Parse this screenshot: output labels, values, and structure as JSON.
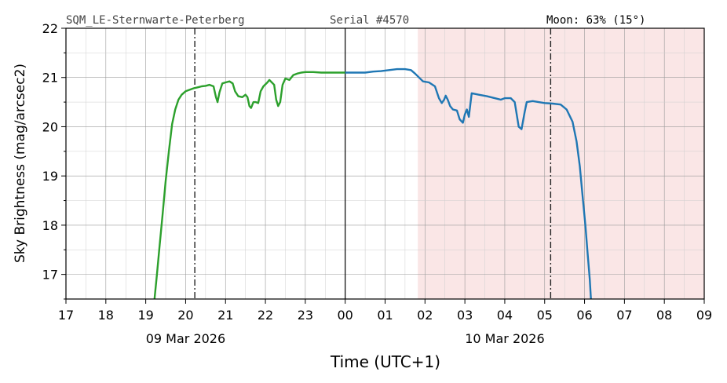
{
  "chart_data": {
    "type": "line",
    "title_left": "SQM_LE-Sternwarte-Peterberg",
    "title_center": "Serial #4570",
    "title_right": "Moon: 63% (15°)",
    "xlabel": "Time (UTC+1)",
    "ylabel": "Sky Brightness (mag/arcsec2)",
    "xlim": [
      17,
      33
    ],
    "ylim": [
      16.5,
      22
    ],
    "grid": true,
    "x_ticks": [
      {
        "x": 17,
        "label": "17"
      },
      {
        "x": 18,
        "label": "18"
      },
      {
        "x": 19,
        "label": "19"
      },
      {
        "x": 20,
        "label": "20"
      },
      {
        "x": 21,
        "label": "21"
      },
      {
        "x": 22,
        "label": "22"
      },
      {
        "x": 23,
        "label": "23"
      },
      {
        "x": 24,
        "label": "00"
      },
      {
        "x": 25,
        "label": "01"
      },
      {
        "x": 26,
        "label": "02"
      },
      {
        "x": 27,
        "label": "03"
      },
      {
        "x": 28,
        "label": "04"
      },
      {
        "x": 29,
        "label": "05"
      },
      {
        "x": 30,
        "label": "06"
      },
      {
        "x": 31,
        "label": "07"
      },
      {
        "x": 32,
        "label": "08"
      },
      {
        "x": 33,
        "label": "09"
      }
    ],
    "y_ticks": [
      {
        "y": 17,
        "label": "17"
      },
      {
        "y": 18,
        "label": "18"
      },
      {
        "y": 19,
        "label": "19"
      },
      {
        "y": 20,
        "label": "20"
      },
      {
        "y": 21,
        "label": "21"
      },
      {
        "y": 22,
        "label": "22"
      }
    ],
    "date_labels": [
      {
        "x": 20,
        "label": "09 Mar 2026"
      },
      {
        "x": 28,
        "label": "10 Mar 2026"
      }
    ],
    "midnight_line_x": 24,
    "dashdot_lines_x": [
      20.23,
      29.15
    ],
    "moon_region": {
      "x_start": 25.82,
      "x_end": 33,
      "color": "#fae6e6"
    },
    "series": [
      {
        "color": "#2ca02c",
        "points": [
          [
            19.22,
            16.5
          ],
          [
            19.28,
            17.0
          ],
          [
            19.35,
            17.6
          ],
          [
            19.42,
            18.2
          ],
          [
            19.5,
            18.9
          ],
          [
            19.58,
            19.5
          ],
          [
            19.66,
            20.05
          ],
          [
            19.74,
            20.35
          ],
          [
            19.82,
            20.55
          ],
          [
            19.9,
            20.65
          ],
          [
            20.0,
            20.72
          ],
          [
            20.1,
            20.75
          ],
          [
            20.2,
            20.78
          ],
          [
            20.3,
            20.8
          ],
          [
            20.4,
            20.82
          ],
          [
            20.5,
            20.83
          ],
          [
            20.6,
            20.85
          ],
          [
            20.7,
            20.82
          ],
          [
            20.76,
            20.6
          ],
          [
            20.8,
            20.5
          ],
          [
            20.85,
            20.7
          ],
          [
            20.92,
            20.88
          ],
          [
            21.0,
            20.9
          ],
          [
            21.1,
            20.92
          ],
          [
            21.18,
            20.88
          ],
          [
            21.24,
            20.72
          ],
          [
            21.32,
            20.62
          ],
          [
            21.42,
            20.6
          ],
          [
            21.5,
            20.65
          ],
          [
            21.55,
            20.6
          ],
          [
            21.6,
            20.42
          ],
          [
            21.64,
            20.38
          ],
          [
            21.7,
            20.5
          ],
          [
            21.76,
            20.5
          ],
          [
            21.82,
            20.48
          ],
          [
            21.88,
            20.72
          ],
          [
            21.95,
            20.82
          ],
          [
            22.05,
            20.9
          ],
          [
            22.1,
            20.95
          ],
          [
            22.16,
            20.9
          ],
          [
            22.22,
            20.85
          ],
          [
            22.27,
            20.55
          ],
          [
            22.32,
            20.42
          ],
          [
            22.37,
            20.5
          ],
          [
            22.43,
            20.85
          ],
          [
            22.5,
            20.98
          ],
          [
            22.6,
            20.95
          ],
          [
            22.7,
            21.05
          ],
          [
            22.8,
            21.08
          ],
          [
            22.9,
            21.1
          ],
          [
            23.0,
            21.11
          ],
          [
            23.2,
            21.11
          ],
          [
            23.4,
            21.1
          ],
          [
            23.6,
            21.1
          ],
          [
            23.8,
            21.1
          ],
          [
            24.0,
            21.1
          ]
        ]
      },
      {
        "color": "#1f77b4",
        "points": [
          [
            24.0,
            21.1
          ],
          [
            24.3,
            21.1
          ],
          [
            24.5,
            21.1
          ],
          [
            24.7,
            21.12
          ],
          [
            24.9,
            21.13
          ],
          [
            25.1,
            21.15
          ],
          [
            25.3,
            21.17
          ],
          [
            25.5,
            21.17
          ],
          [
            25.65,
            21.15
          ],
          [
            25.75,
            21.08
          ],
          [
            25.85,
            21.0
          ],
          [
            25.95,
            20.92
          ],
          [
            26.1,
            20.9
          ],
          [
            26.25,
            20.82
          ],
          [
            26.35,
            20.58
          ],
          [
            26.42,
            20.48
          ],
          [
            26.48,
            20.55
          ],
          [
            26.52,
            20.63
          ],
          [
            26.57,
            20.55
          ],
          [
            26.63,
            20.42
          ],
          [
            26.7,
            20.35
          ],
          [
            26.8,
            20.33
          ],
          [
            26.87,
            20.15
          ],
          [
            26.95,
            20.08
          ],
          [
            27.0,
            20.25
          ],
          [
            27.05,
            20.35
          ],
          [
            27.1,
            20.2
          ],
          [
            27.17,
            20.68
          ],
          [
            27.35,
            20.65
          ],
          [
            27.55,
            20.62
          ],
          [
            27.75,
            20.58
          ],
          [
            27.9,
            20.55
          ],
          [
            28.0,
            20.58
          ],
          [
            28.15,
            20.58
          ],
          [
            28.25,
            20.5
          ],
          [
            28.35,
            20.0
          ],
          [
            28.42,
            19.95
          ],
          [
            28.5,
            20.3
          ],
          [
            28.55,
            20.5
          ],
          [
            28.7,
            20.52
          ],
          [
            28.85,
            20.5
          ],
          [
            29.0,
            20.48
          ],
          [
            29.2,
            20.47
          ],
          [
            29.4,
            20.45
          ],
          [
            29.55,
            20.35
          ],
          [
            29.7,
            20.1
          ],
          [
            29.8,
            19.7
          ],
          [
            29.88,
            19.2
          ],
          [
            29.95,
            18.6
          ],
          [
            30.02,
            18.0
          ],
          [
            30.08,
            17.4
          ],
          [
            30.13,
            16.9
          ],
          [
            30.16,
            16.5
          ]
        ]
      }
    ]
  }
}
